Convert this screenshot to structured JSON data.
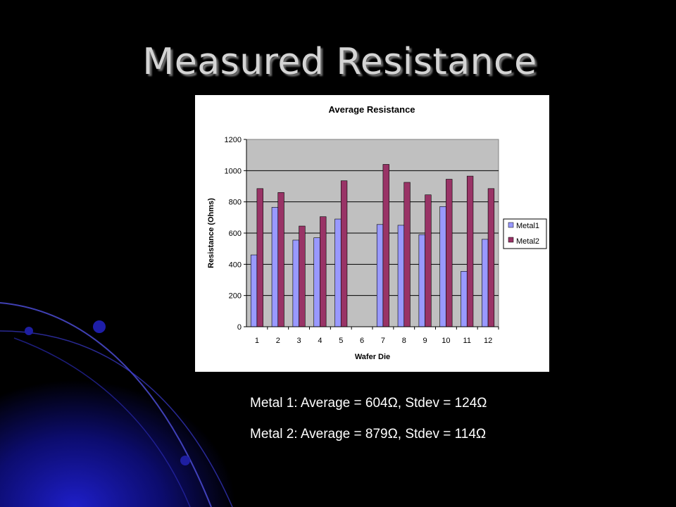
{
  "slide": {
    "title": "Measured Resistance",
    "stats": [
      "Metal 1: Average = 604Ω, Stdev = 124Ω",
      "Metal 2: Average = 879Ω, Stdev = 114Ω"
    ]
  },
  "colors": {
    "background": "#000000",
    "accent_blue": "#1a1aa8",
    "title_text": "#d4d4d4",
    "metal1": "#9999ff",
    "metal2": "#993366",
    "plot_area": "#c0c0c0"
  },
  "chart_data": {
    "type": "bar",
    "title": "Average Resistance",
    "xlabel": "Wafer Die",
    "ylabel": "Resistance (Ohms)",
    "ylim": [
      0,
      1200
    ],
    "yticks": [
      0,
      200,
      400,
      600,
      800,
      1000,
      1200
    ],
    "grid": true,
    "legend_position": "right",
    "categories": [
      "1",
      "2",
      "3",
      "4",
      "5",
      "6",
      "7",
      "8",
      "9",
      "10",
      "11",
      "12"
    ],
    "series": [
      {
        "name": "Metal1",
        "color": "#9999ff",
        "values": [
          460,
          765,
          555,
          570,
          690,
          null,
          655,
          650,
          590,
          770,
          355,
          560
        ]
      },
      {
        "name": "Metal2",
        "color": "#993366",
        "values": [
          885,
          860,
          645,
          705,
          935,
          null,
          1040,
          925,
          845,
          945,
          965,
          885
        ]
      }
    ]
  }
}
